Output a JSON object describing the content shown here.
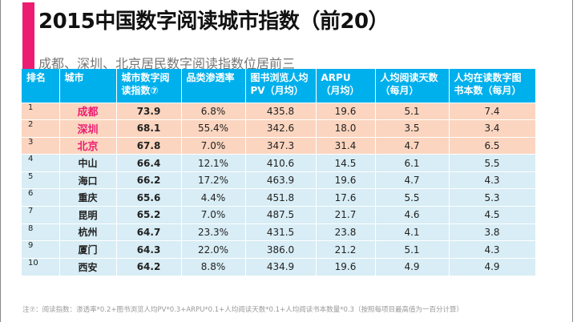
{
  "title": "2015中国数字阅读城市指数（前20）",
  "subtitle": "成都、深圳、北京居民数字阅读指数位居前三",
  "headers": [
    "排名",
    "城市",
    "城市数字阅读指数⑦",
    "品类渗透率",
    "图书浏览人均PV（月均）",
    "ARPU（月均）",
    "人均阅读天数（每月）",
    "人均在读数字图书本数（每月）"
  ],
  "rows": [
    [
      "1",
      "成都",
      "73.9",
      "6.8%",
      "435.8",
      "19.6",
      "5.1",
      "7.4"
    ],
    [
      "2",
      "深圳",
      "68.1",
      "55.4%",
      "342.6",
      "18.0",
      "3.5",
      "3.4"
    ],
    [
      "3",
      "北京",
      "67.8",
      "7.0%",
      "347.3",
      "31.4",
      "4.7",
      "6.5"
    ],
    [
      "4",
      "中山",
      "66.4",
      "12.1%",
      "410.6",
      "14.5",
      "6.1",
      "5.5"
    ],
    [
      "5",
      "海口",
      "66.2",
      "17.2%",
      "463.9",
      "19.6",
      "4.7",
      "4.3"
    ],
    [
      "6",
      "重庆",
      "65.6",
      "4.4%",
      "451.8",
      "17.6",
      "5.5",
      "5.3"
    ],
    [
      "7",
      "昆明",
      "65.2",
      "7.0%",
      "487.5",
      "21.7",
      "4.6",
      "4.5"
    ],
    [
      "8",
      "杭州",
      "64.7",
      "23.3%",
      "431.5",
      "23.8",
      "4.1",
      "3.8"
    ],
    [
      "9",
      "厦门",
      "64.3",
      "22.0%",
      "386.0",
      "21.2",
      "5.1",
      "4.3"
    ],
    [
      "10",
      "西安",
      "64.2",
      "8.8%",
      "434.9",
      "19.6",
      "4.9",
      "4.9"
    ]
  ],
  "note": "注⑦：阅读指数：渗透率*0.2+图书浏览人均PV*0.3+ARPU*0.1+人均阅读天数*0.1+人均阅读书本数量*0.3（按照每项目最高值为一百分计算）",
  "colors": {
    "accent": "#ec1c72",
    "header": "#00b0ec",
    "top3": "#fbd5bf",
    "rest": "#d8edf5"
  }
}
